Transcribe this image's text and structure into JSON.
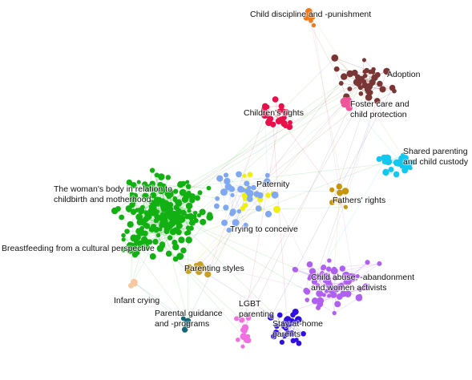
{
  "clusters": [
    {
      "lines": [
        "Child discipline and -punishment"
      ],
      "color": "#f07a1a"
    },
    {
      "lines": [
        "Adoption"
      ],
      "color": "#7a3535"
    },
    {
      "lines": [
        "Foster care and",
        "child protection"
      ],
      "color": "#f0559a"
    },
    {
      "lines": [
        "Children's rights"
      ],
      "color": "#e8104a"
    },
    {
      "lines": [
        "Shared parenting",
        "and child custody"
      ],
      "color": "#10c8f0"
    },
    {
      "lines": [
        "The woman's body in relation to",
        "childbirth and motherhood"
      ],
      "color": "#12b012"
    },
    {
      "lines": [
        "Paternity"
      ],
      "color": "#f0f010"
    },
    {
      "lines": [
        "Fathers' rights"
      ],
      "color": "#c8960a"
    },
    {
      "lines": [
        "Trying to conceive"
      ],
      "color": "#80a8f0"
    },
    {
      "lines": [
        "Breastfeeding from a cultural perspective"
      ],
      "color": "#12b012"
    },
    {
      "lines": [
        "Parenting styles"
      ],
      "color": "#c8a028"
    },
    {
      "lines": [
        "Child abuse, -abandonment",
        "and women activists"
      ],
      "color": "#b060f0"
    },
    {
      "lines": [
        "Infant crying"
      ],
      "color": "#f8c8a0"
    },
    {
      "lines": [
        "Parental guidance",
        "and -programs"
      ],
      "color": "#106878"
    },
    {
      "lines": [
        "LGBT",
        "parenting"
      ],
      "color": "#f070e0"
    },
    {
      "lines": [
        "Stay-at-home",
        "parents"
      ],
      "color": "#3010e0"
    }
  ]
}
